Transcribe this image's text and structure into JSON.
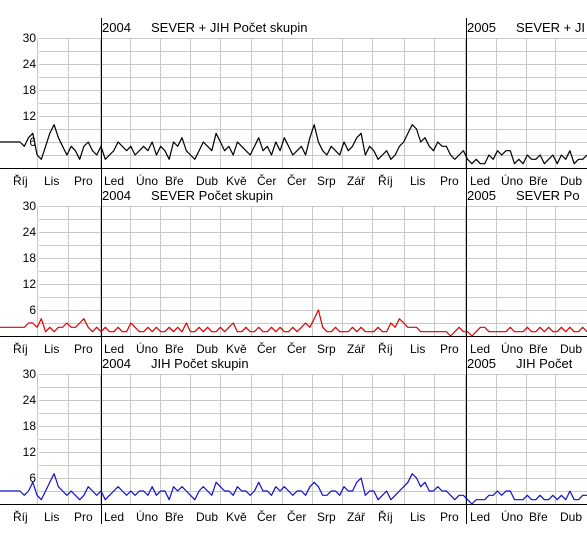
{
  "chart_data": [
    {
      "type": "line",
      "color": "#000000",
      "ylim": [
        0,
        30
      ],
      "yticks": [
        6,
        12,
        18,
        24,
        30
      ],
      "grid": true,
      "year_headers": [
        {
          "year": "2004",
          "text": "SEVER + JIH   Počet skupin"
        },
        {
          "year": "2005",
          "text": "SEVER + JI"
        }
      ],
      "x_labels": [
        "Říj",
        "Lis",
        "Pro",
        "Led",
        "Úno",
        "Bře",
        "Dub",
        "Kvě",
        "Čer",
        "Čer",
        "Srp",
        "Zář",
        "Říj",
        "Lis",
        "Pro",
        "Led",
        "Úno",
        "Bře",
        "Dub"
      ],
      "series": [
        {
          "values": [
            6,
            5,
            7,
            8,
            3,
            2,
            5,
            8,
            10,
            7,
            5,
            3,
            5,
            4,
            2,
            5,
            6,
            4,
            3,
            5,
            2,
            3,
            4,
            6,
            5,
            4,
            5,
            3,
            4,
            5,
            4,
            6,
            3,
            5,
            4,
            2,
            6,
            5,
            7,
            4,
            3,
            2,
            4,
            6,
            5,
            4,
            8,
            6,
            4,
            5,
            3,
            6,
            5,
            4,
            3,
            5,
            7,
            4,
            5,
            3,
            6,
            4,
            7,
            5,
            3,
            4,
            5,
            3,
            7,
            10,
            6,
            4,
            3,
            5,
            4,
            3,
            6,
            4,
            5,
            7,
            8,
            3,
            5,
            4,
            2,
            3,
            4,
            2,
            3,
            5,
            6,
            8,
            10,
            9,
            6,
            7,
            5,
            4,
            6,
            5,
            5,
            3,
            2,
            3,
            4,
            2,
            1,
            2,
            1,
            1,
            3,
            2,
            4,
            3,
            4,
            4,
            1,
            2,
            1,
            3,
            2,
            2,
            3,
            1,
            2,
            3,
            1,
            3,
            2,
            4,
            1,
            2,
            2,
            3
          ]
        }
      ]
    },
    {
      "type": "line",
      "color": "#dd0000",
      "ylim": [
        0,
        30
      ],
      "yticks": [
        6,
        12,
        18,
        24,
        30
      ],
      "grid": true,
      "year_headers": [
        {
          "year": "2004",
          "text": "SEVER   Počet skupin"
        },
        {
          "year": "2005",
          "text": "SEVER   Po"
        }
      ],
      "x_labels": [
        "Říj",
        "Lis",
        "Pro",
        "Led",
        "Úno",
        "Bře",
        "Dub",
        "Kvě",
        "Čer",
        "Čer",
        "Srp",
        "Zář",
        "Říj",
        "Lis",
        "Pro",
        "Led",
        "Úno",
        "Bře",
        "Dub"
      ],
      "series": [
        {
          "values": [
            2,
            2,
            3,
            3,
            2,
            4,
            1,
            2,
            1,
            2,
            2,
            3,
            2,
            2,
            3,
            4,
            2,
            1,
            2,
            1,
            2,
            1,
            1,
            2,
            1,
            1,
            3,
            2,
            1,
            1,
            2,
            1,
            2,
            1,
            1,
            2,
            1,
            2,
            1,
            3,
            1,
            1,
            2,
            1,
            2,
            1,
            1,
            2,
            1,
            2,
            3,
            1,
            1,
            2,
            1,
            1,
            2,
            1,
            1,
            2,
            1,
            2,
            1,
            1,
            2,
            1,
            2,
            3,
            2,
            4,
            6,
            2,
            1,
            1,
            2,
            1,
            1,
            1,
            2,
            1,
            2,
            1,
            1,
            1,
            2,
            1,
            1,
            3,
            2,
            4,
            3,
            2,
            2,
            2,
            1,
            1,
            1,
            1,
            1,
            1,
            1,
            0,
            1,
            2,
            1,
            1,
            0,
            1,
            2,
            2,
            1,
            1,
            1,
            1,
            1,
            2,
            1,
            1,
            1,
            2,
            1,
            1,
            2,
            1,
            2,
            1,
            1,
            2,
            1,
            2,
            1,
            1,
            2,
            1
          ]
        }
      ]
    },
    {
      "type": "line",
      "color": "#1010cc",
      "ylim": [
        0,
        30
      ],
      "yticks": [
        6,
        12,
        18,
        24,
        30
      ],
      "grid": true,
      "year_headers": [
        {
          "year": "2004",
          "text": "JIH   Počet skupin"
        },
        {
          "year": "2005",
          "text": "JIH   Počet"
        }
      ],
      "x_labels": [
        "Říj",
        "Lis",
        "Pro",
        "Led",
        "Úno",
        "Bře",
        "Dub",
        "Kvě",
        "Čer",
        "Čer",
        "Srp",
        "Zář",
        "Říj",
        "Lis",
        "Pro",
        "Led",
        "Úno",
        "Bře",
        "Dub"
      ],
      "series": [
        {
          "values": [
            3,
            2,
            3,
            5,
            2,
            1,
            3,
            5,
            7,
            4,
            3,
            2,
            3,
            2,
            1,
            2,
            4,
            3,
            2,
            3,
            1,
            2,
            3,
            4,
            3,
            2,
            3,
            2,
            3,
            3,
            2,
            4,
            2,
            3,
            3,
            1,
            4,
            3,
            4,
            3,
            2,
            1,
            3,
            4,
            3,
            2,
            5,
            4,
            3,
            3,
            2,
            4,
            3,
            3,
            2,
            3,
            5,
            3,
            3,
            2,
            4,
            3,
            4,
            3,
            2,
            3,
            3,
            2,
            4,
            5,
            4,
            2,
            2,
            3,
            3,
            2,
            4,
            3,
            3,
            5,
            6,
            2,
            3,
            3,
            1,
            2,
            3,
            1,
            2,
            3,
            4,
            5,
            7,
            6,
            4,
            5,
            3,
            3,
            4,
            3,
            3,
            2,
            1,
            2,
            2,
            1,
            0,
            1,
            1,
            1,
            2,
            2,
            3,
            2,
            3,
            3,
            1,
            1,
            1,
            2,
            1,
            1,
            2,
            1,
            1,
            2,
            1,
            2,
            1,
            3,
            1,
            1,
            2,
            2
          ]
        }
      ]
    }
  ]
}
